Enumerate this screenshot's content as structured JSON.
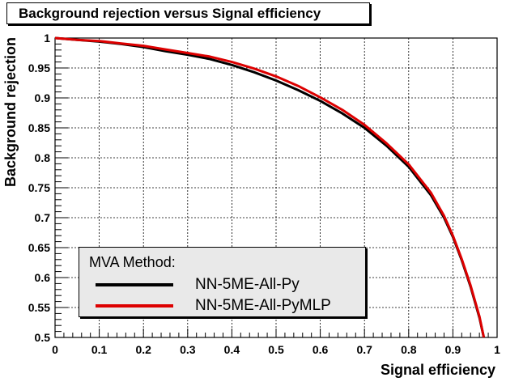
{
  "chart_data": {
    "type": "line",
    "title": "Background rejection versus Signal efficiency",
    "xlabel": "Signal efficiency",
    "ylabel": "Background rejection",
    "xlim": [
      0,
      1
    ],
    "ylim": [
      0.5,
      1
    ],
    "xticks": [
      "0",
      "0.1",
      "0.2",
      "0.3",
      "0.4",
      "0.5",
      "0.6",
      "0.7",
      "0.8",
      "0.9",
      "1"
    ],
    "yticks": [
      "0.5",
      "0.55",
      "0.6",
      "0.65",
      "0.7",
      "0.75",
      "0.8",
      "0.85",
      "0.9",
      "0.95",
      "1"
    ],
    "grid": true,
    "legend": {
      "title": "MVA Method:",
      "position": "bottom-left"
    },
    "series": [
      {
        "name": "NN-5ME-All-Py",
        "color": "#000000",
        "x": [
          0,
          0.05,
          0.1,
          0.15,
          0.2,
          0.25,
          0.3,
          0.35,
          0.4,
          0.45,
          0.5,
          0.55,
          0.6,
          0.65,
          0.7,
          0.75,
          0.8,
          0.85,
          0.88,
          0.9,
          0.92,
          0.94,
          0.96,
          0.97
        ],
        "values": [
          1.0,
          0.997,
          0.994,
          0.99,
          0.985,
          0.978,
          0.972,
          0.965,
          0.955,
          0.943,
          0.929,
          0.913,
          0.895,
          0.874,
          0.85,
          0.82,
          0.785,
          0.738,
          0.7,
          0.668,
          0.629,
          0.585,
          0.533,
          0.5
        ]
      },
      {
        "name": "NN-5ME-All-PyMLP",
        "color": "#dd0000",
        "x": [
          0,
          0.05,
          0.1,
          0.15,
          0.2,
          0.25,
          0.3,
          0.35,
          0.4,
          0.45,
          0.5,
          0.55,
          0.6,
          0.65,
          0.7,
          0.75,
          0.8,
          0.85,
          0.88,
          0.9,
          0.92,
          0.94,
          0.96,
          0.97
        ],
        "values": [
          1.0,
          0.997,
          0.995,
          0.991,
          0.987,
          0.981,
          0.975,
          0.969,
          0.96,
          0.949,
          0.936,
          0.92,
          0.901,
          0.88,
          0.855,
          0.824,
          0.789,
          0.742,
          0.703,
          0.67,
          0.631,
          0.587,
          0.535,
          0.5
        ]
      }
    ]
  }
}
